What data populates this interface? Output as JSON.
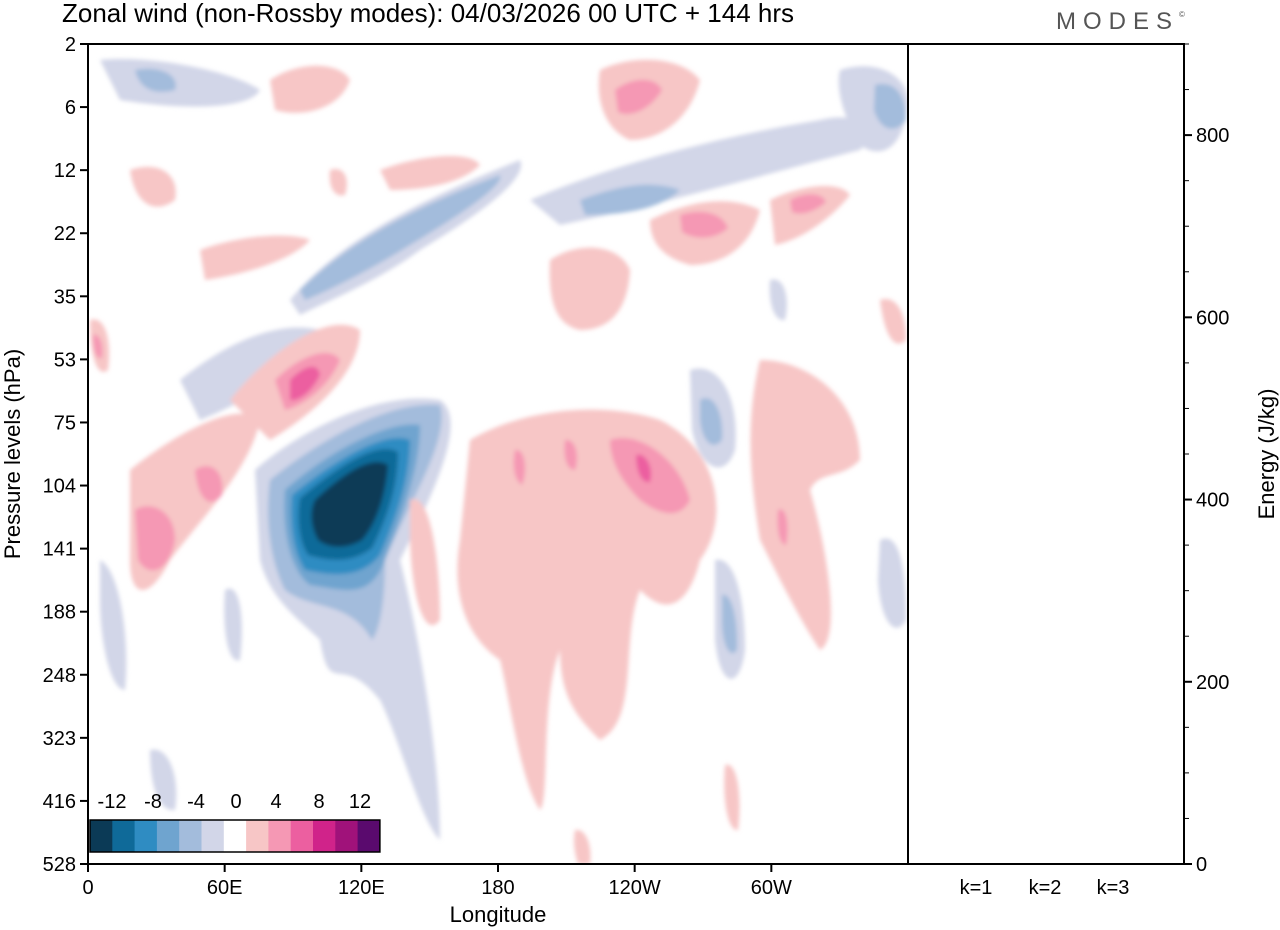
{
  "title": "Zonal wind (non-Rossby modes):  04/03/2026  00 UTC  + 144 hrs",
  "logo_text": "MODES",
  "logo_mark": "©",
  "chart_data": [
    {
      "type": "heatmap",
      "title": "Zonal wind (non-Rossby modes)",
      "xlabel": "Longitude",
      "ylabel": "Pressure levels (hPa)",
      "x_ticks": [
        "0",
        "60E",
        "120E",
        "180",
        "120W",
        "60W"
      ],
      "x_tick_values": [
        0,
        60,
        120,
        180,
        240,
        300
      ],
      "xlim": [
        0,
        360
      ],
      "y_ticks": [
        "2",
        "6",
        "12",
        "22",
        "35",
        "53",
        "75",
        "104",
        "141",
        "188",
        "248",
        "323",
        "416",
        "528"
      ],
      "colorbar": {
        "labels": [
          "-12",
          "-8",
          "-4",
          "0",
          "4",
          "8",
          "12"
        ],
        "levels": [
          -14,
          -12,
          -10,
          -8,
          -6,
          -4,
          -2,
          2,
          4,
          6,
          8,
          10,
          12,
          14
        ],
        "colors": [
          "#0b3a56",
          "#0f6a99",
          "#2f8cc2",
          "#6fa4cf",
          "#a3bcdc",
          "#d2d6e8",
          "#ffffff",
          "#f7c6c6",
          "#f598b4",
          "#ec5fa0",
          "#d0238a",
          "#a0127a",
          "#5a0a6e"
        ],
        "position": "bottom-left"
      },
      "features": [
        {
          "name": "strongest easterly core",
          "lon": 111,
          "level_hPa": 116,
          "u": -14
        },
        {
          "name": "westerly maximum",
          "lon": 93,
          "level_hPa": 62,
          "u": 8
        },
        {
          "name": "westerly maximum",
          "lon": 229,
          "level_hPa": 100,
          "u": 8
        }
      ]
    },
    {
      "type": "bar",
      "categories": [
        "k=1",
        "k=2",
        "k=3"
      ],
      "values": [
        1,
        1,
        1
      ],
      "ylabel": "Energy (J/kg)",
      "y_ticks": [
        "0",
        "200",
        "400",
        "600",
        "800"
      ],
      "ylim": [
        0,
        900
      ]
    }
  ]
}
